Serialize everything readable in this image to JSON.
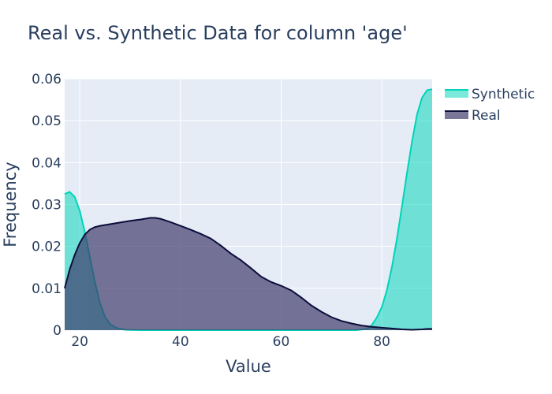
{
  "chart_data": {
    "type": "area",
    "title": "Real vs. Synthetic Data for column 'age'",
    "xlabel": "Value",
    "ylabel": "Frequency",
    "xlim": [
      17,
      90
    ],
    "ylim": [
      0,
      0.06
    ],
    "x_ticks": [
      20,
      40,
      60,
      80
    ],
    "y_ticks": [
      0,
      0.01,
      0.02,
      0.03,
      0.04,
      0.05,
      0.06
    ],
    "y_tick_labels": [
      "0",
      "0.01",
      "0.02",
      "0.03",
      "0.04",
      "0.05",
      "0.06"
    ],
    "grid": true,
    "legend_position": "top-right",
    "series": [
      {
        "name": "Synthetic",
        "color": "#00d4b8",
        "fill": "rgba(0, 212, 184, 0.52)",
        "x": [
          17,
          18,
          19,
          20,
          21,
          22,
          23,
          24,
          25,
          26,
          27,
          28,
          29,
          30,
          32,
          35,
          40,
          50,
          60,
          70,
          75,
          77,
          78,
          79,
          80,
          81,
          82,
          83,
          84,
          85,
          86,
          87,
          88,
          89,
          90
        ],
        "y": [
          0.0325,
          0.033,
          0.0318,
          0.0285,
          0.0235,
          0.0175,
          0.0115,
          0.0065,
          0.0032,
          0.0015,
          0.0007,
          0.0003,
          0.0001,
          5e-05,
          0.0,
          0.0,
          0.0,
          0.0,
          0.0,
          0.0,
          0.0,
          0.0003,
          0.0012,
          0.003,
          0.0055,
          0.0095,
          0.015,
          0.0218,
          0.0295,
          0.0375,
          0.045,
          0.0515,
          0.0555,
          0.0573,
          0.0575
        ]
      },
      {
        "name": "Real",
        "color": "#0d0d3a",
        "fill": "rgba(60, 55, 105, 0.68)",
        "x": [
          17,
          18,
          19,
          20,
          21,
          22,
          23,
          24,
          26,
          28,
          30,
          32,
          34,
          35,
          36,
          38,
          40,
          42,
          44,
          46,
          48,
          50,
          52,
          54,
          56,
          58,
          60,
          62,
          64,
          66,
          68,
          70,
          72,
          74,
          76,
          78,
          80,
          82,
          84,
          86,
          88,
          89,
          90
        ],
        "y": [
          0.01,
          0.0145,
          0.018,
          0.0208,
          0.0228,
          0.024,
          0.0246,
          0.0249,
          0.0253,
          0.0257,
          0.0261,
          0.0264,
          0.0268,
          0.0268,
          0.0266,
          0.0258,
          0.0249,
          0.024,
          0.023,
          0.0219,
          0.0202,
          0.0183,
          0.0167,
          0.0148,
          0.0128,
          0.0115,
          0.0106,
          0.0095,
          0.0078,
          0.0059,
          0.0044,
          0.0031,
          0.0022,
          0.0016,
          0.0011,
          0.0008,
          0.0006,
          0.0004,
          0.0002,
          0.0001,
          0.0002,
          0.0003,
          0.0003
        ]
      }
    ]
  }
}
